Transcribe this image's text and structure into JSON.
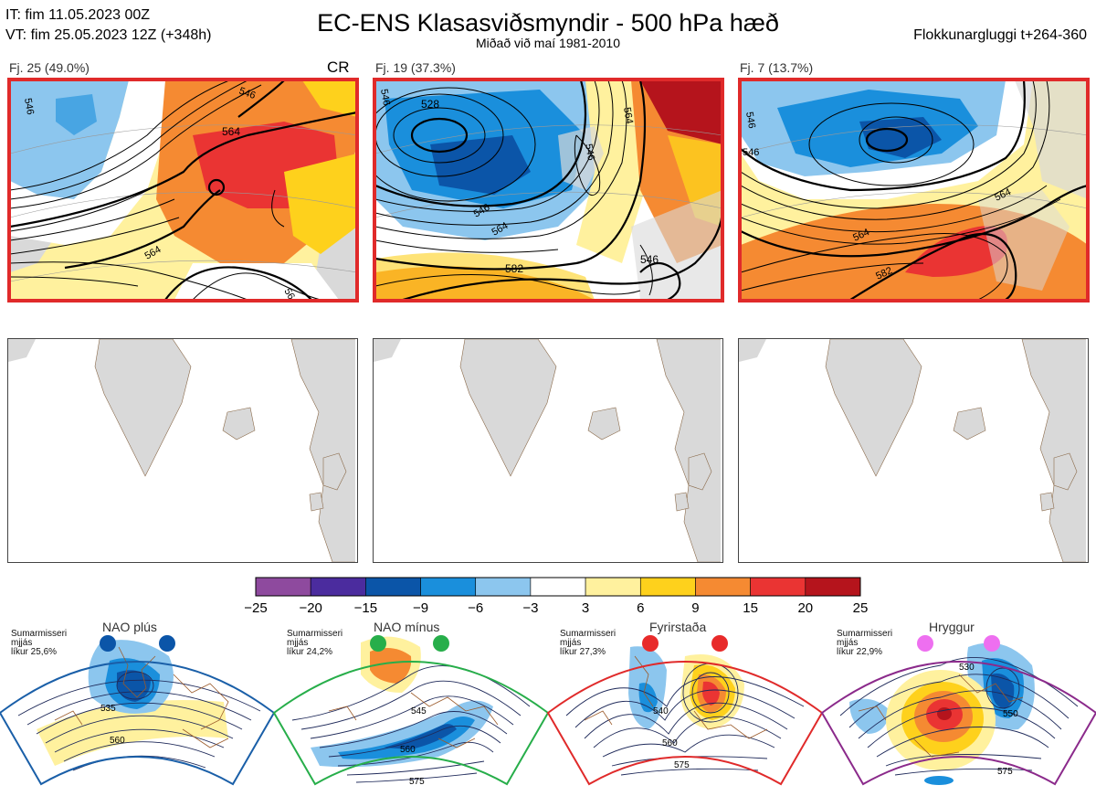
{
  "header": {
    "it_line": "IT: fim 11.05.2023 00Z",
    "vt_line": "VT: fim 25.05.2023 12Z  (+348h)",
    "title": "EC-ENS Klasasviðsmyndir - 500 hPa hæð",
    "subtitle": "Miðað við maí 1981-2010",
    "window": "Flokkunargluggi t+264-360"
  },
  "panels": [
    {
      "label": "Fj. 25 (49.0%)",
      "tag": "CR",
      "contours": [
        "546",
        "564",
        "546",
        "564",
        "564"
      ]
    },
    {
      "label": "Fj. 19 (37.3%)",
      "contours": [
        "546",
        "564",
        "528",
        "546",
        "564",
        "546",
        "582",
        "546"
      ]
    },
    {
      "label": "Fj. 7 (13.7%)",
      "contours": [
        "546",
        "546",
        "564",
        "564",
        "582"
      ]
    }
  ],
  "chart_data": {
    "type": "heatmap",
    "title": "EC-ENS Klasasviðsmyndir - 500 hPa hæð",
    "colorbar": {
      "ticks": [
        "−25",
        "−20",
        "−15",
        "−9",
        "−6",
        "−3",
        "3",
        "6",
        "9",
        "15",
        "20",
        "25"
      ],
      "colors": [
        "#8e4a9e",
        "#4b2c9e",
        "#0b55a8",
        "#1a8fdc",
        "#8cc6ee",
        "#ffffff",
        "#fff19e",
        "#fed11c",
        "#f58a32",
        "#ea3433",
        "#b5141c"
      ]
    },
    "clusters": [
      {
        "name": "Fj. 25",
        "members": 25,
        "percent": 49.0
      },
      {
        "name": "Fj. 19",
        "members": 19,
        "percent": 37.3
      },
      {
        "name": "Fj. 7",
        "members": 7,
        "percent": 13.7
      }
    ],
    "regimes": [
      {
        "name": "NAO plús",
        "season": "Sumarmisseri",
        "avg": "mjjás",
        "prob": "líkur 25,6%",
        "dot_color": "#0b55a8",
        "frame_color": "#1a5fa8",
        "labels": [
          "535",
          "560"
        ]
      },
      {
        "name": "NAO mínus",
        "season": "Sumarmisseri",
        "avg": "mjjás",
        "prob": "líkur 24,2%",
        "dot_color": "#27ae4a",
        "frame_color": "#27ae4a",
        "labels": [
          "545",
          "560",
          "575"
        ]
      },
      {
        "name": "Fyrirstaða",
        "season": "Sumarmisseri",
        "avg": "mjjás",
        "prob": "líkur 27,3%",
        "dot_color": "#e82a2a",
        "frame_color": "#e02a2a",
        "labels": [
          "540",
          "560",
          "575"
        ]
      },
      {
        "name": "Hryggur",
        "season": "Sumarmisseri",
        "avg": "mjjás",
        "prob": "líkur 22,9%",
        "dot_color": "#ee6ff0",
        "frame_color": "#8b2a8b",
        "labels": [
          "530",
          "550",
          "575"
        ]
      }
    ]
  }
}
